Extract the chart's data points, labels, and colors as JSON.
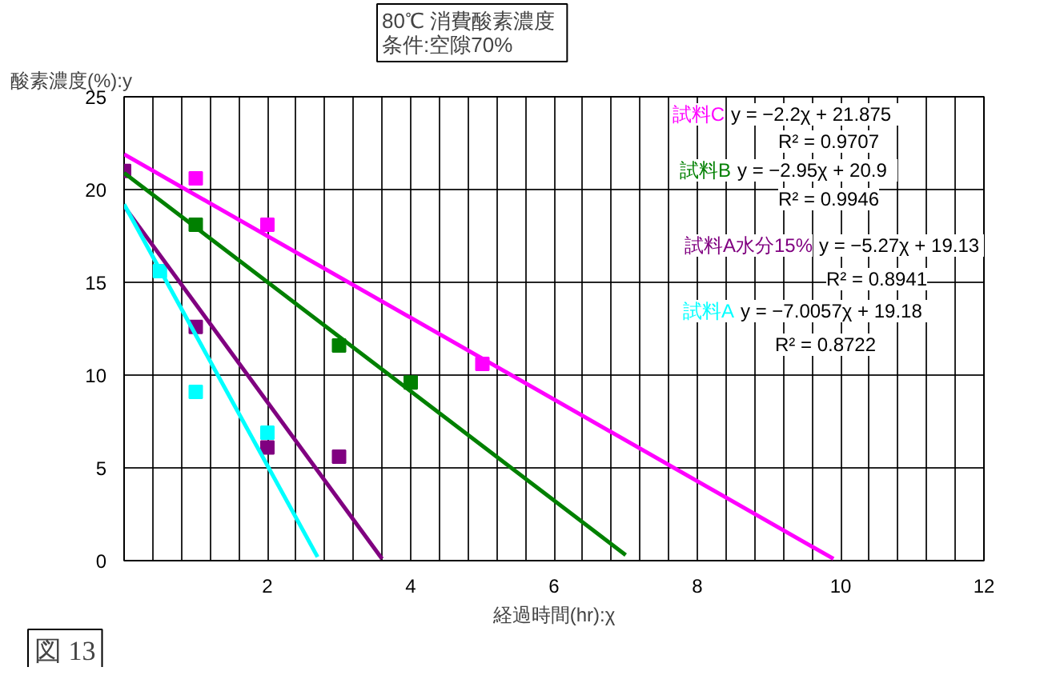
{
  "chart_data": {
    "type": "scatter",
    "title": "80℃  消費酸素濃度",
    "subtitle": "条件:空隙70%",
    "xlabel": "経過時間(hr):χ",
    "ylabel": "酸素濃度(%):y",
    "xlim": [
      0,
      12
    ],
    "ylim": [
      0,
      25
    ],
    "xticks": [
      {
        "value": 0,
        "label": null
      },
      {
        "value": 0.4,
        "label": null
      },
      {
        "value": 0.8,
        "label": null
      },
      {
        "value": 1.2,
        "label": null
      },
      {
        "value": 1.6,
        "label": null
      },
      2,
      {
        "value": 2.4,
        "label": null
      },
      {
        "value": 2.8,
        "label": null
      },
      {
        "value": 3.2,
        "label": null
      },
      {
        "value": 3.6,
        "label": null
      },
      4,
      {
        "value": 4.4,
        "label": null
      },
      {
        "value": 4.8,
        "label": null
      },
      {
        "value": 5.2,
        "label": null
      },
      {
        "value": 5.6,
        "label": null
      },
      6,
      {
        "value": 6.4,
        "label": null
      },
      {
        "value": 6.8,
        "label": null
      },
      {
        "value": 7.2,
        "label": null
      },
      {
        "value": 7.6,
        "label": null
      },
      8,
      {
        "value": 8.4,
        "label": null
      },
      {
        "value": 8.8,
        "label": null
      },
      {
        "value": 9.2,
        "label": null
      },
      {
        "value": 9.6,
        "label": null
      },
      10,
      {
        "value": 10.4,
        "label": null
      },
      {
        "value": 10.8,
        "label": null
      },
      {
        "value": 11.2,
        "label": null
      },
      {
        "value": 11.6,
        "label": null
      },
      12
    ],
    "yticks": [
      0,
      5,
      10,
      15,
      20,
      25
    ],
    "grid": true,
    "marker": "square",
    "series": [
      {
        "name": "試料C",
        "color": "#ff00ff",
        "x": [
          1,
          2,
          5
        ],
        "values": [
          20.6,
          18.1,
          10.6
        ]
      },
      {
        "name": "試料B",
        "color": "#008000",
        "x": [
          1,
          3,
          4
        ],
        "values": [
          18.1,
          11.6,
          9.6
        ]
      },
      {
        "name": "試料A水分15%",
        "color": "#800080",
        "x": [
          0,
          1,
          2,
          3
        ],
        "values": [
          21,
          12.6,
          6.1,
          5.6
        ]
      },
      {
        "name": "試料A",
        "color": "#00ffff",
        "x": [
          0.5,
          1,
          2
        ],
        "values": [
          15.6,
          9.1,
          6.9
        ]
      },
      {
        "type": "line",
        "marker": "none",
        "color": "#ff00ff",
        "x": [
          0,
          9.9
        ],
        "values": [
          21.9,
          0.1
        ]
      },
      {
        "type": "line",
        "marker": "none",
        "color": "#008000",
        "x": [
          0,
          7
        ],
        "values": [
          20.9,
          0.3
        ]
      },
      {
        "type": "line",
        "marker": "none",
        "color": "#800080",
        "x": [
          0,
          3.6
        ],
        "values": [
          19.1,
          0.1
        ]
      },
      {
        "type": "line",
        "marker": "none",
        "color": "#00ffff",
        "x": [
          0,
          2.7
        ],
        "values": [
          19.2,
          0.2
        ]
      }
    ],
    "annotations": [
      "y = −2.2χ   + 21.875",
      "R² = 0.9707",
      "y = −2.95χ   + 20.9",
      "R² = 0.9946",
      "y = −5.27χ   + 19.13",
      "R² = 0.8941",
      "y = −7.0057χ   + 19.18",
      "R² = 0.8722",
      "図 13"
    ]
  }
}
